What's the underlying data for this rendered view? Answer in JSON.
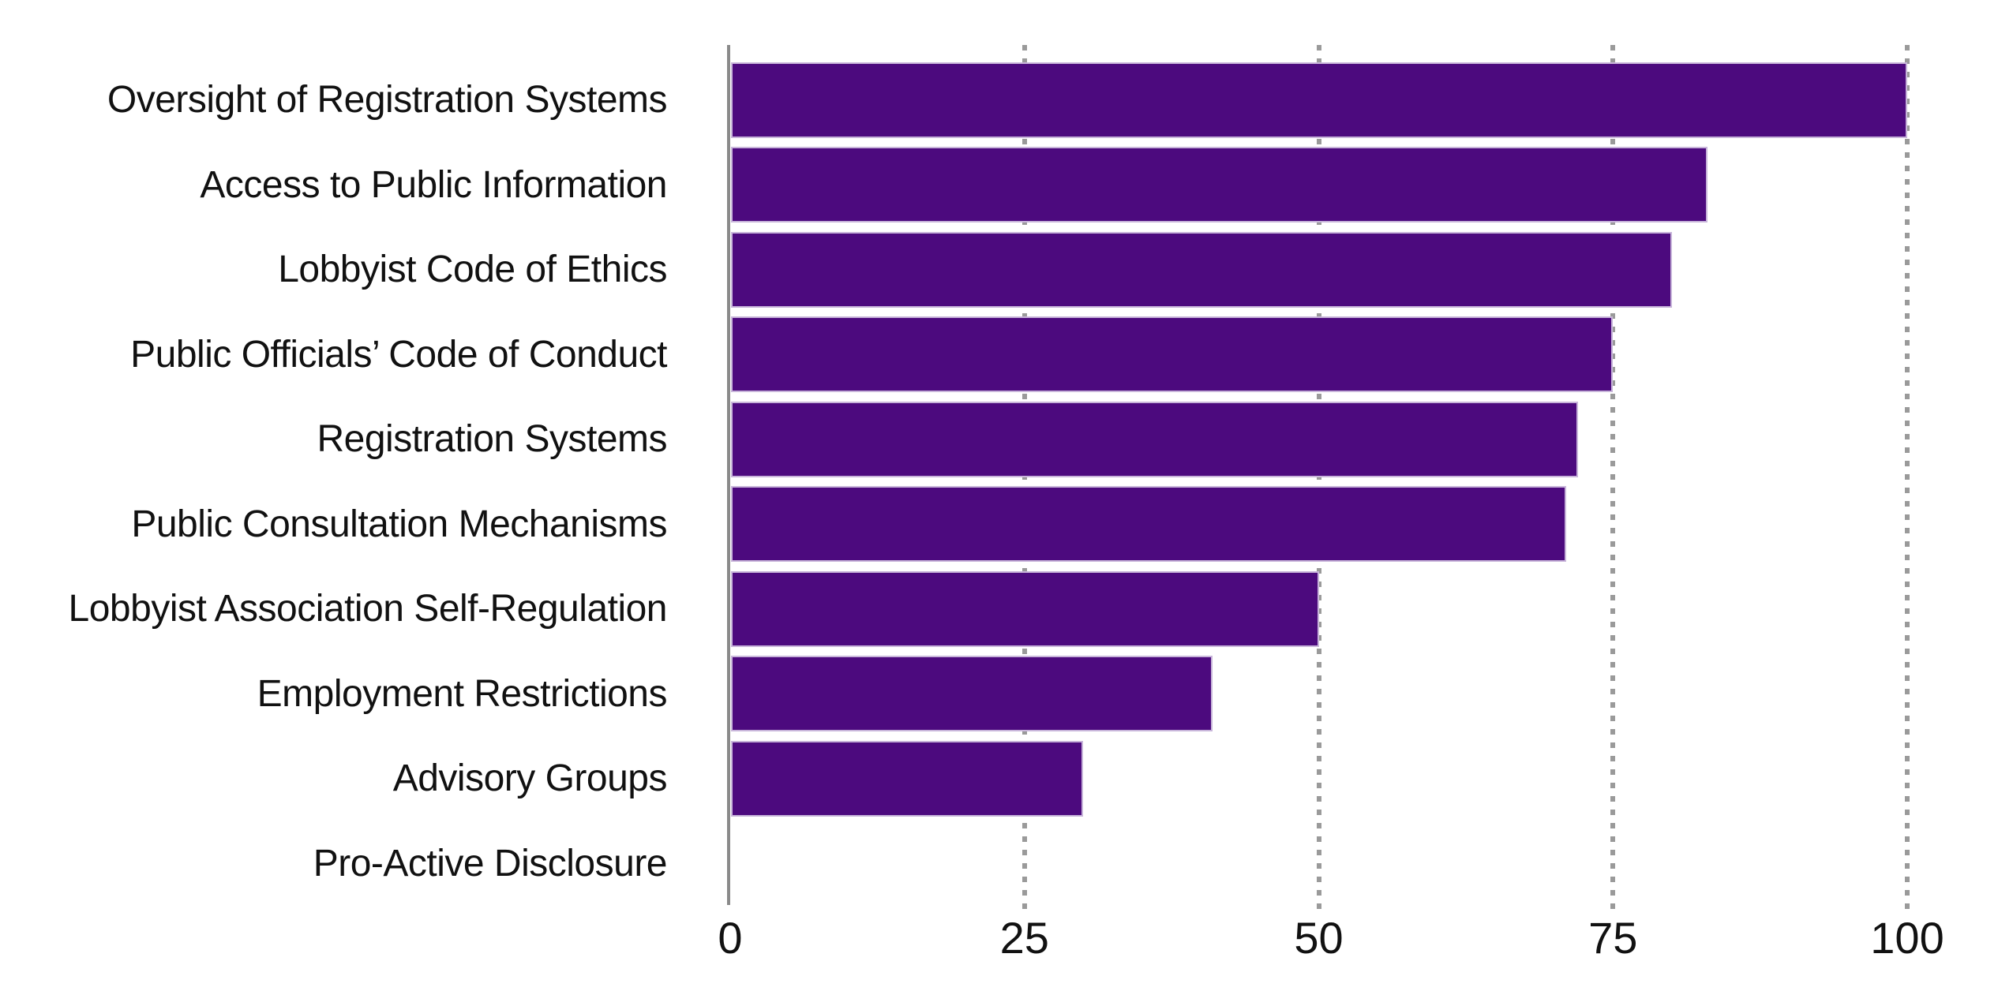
{
  "chart_data": {
    "type": "bar",
    "orientation": "horizontal",
    "title": "",
    "categories": [
      "Oversight of Registration Systems",
      "Access to Public Information",
      "Lobbyist Code of Ethics",
      "Public Officials’ Code of Conduct",
      "Registration Systems",
      "Public Consultation Mechanisms",
      "Lobbyist Association Self-Regulation",
      "Employment Restrictions",
      "Advisory Groups",
      "Pro-Active Disclosure"
    ],
    "values": [
      100,
      83,
      80,
      75,
      72,
      71,
      50,
      41,
      30,
      0
    ],
    "xlabel": "",
    "ylabel": "",
    "xlim": [
      0,
      100
    ],
    "x_ticks": [
      0,
      25,
      50,
      75,
      100
    ],
    "grid": "vertical-dotted",
    "legend": "none",
    "colors": {
      "bar": "#4C0A7E",
      "bar_border": "#C8B5DA",
      "axis_line": "#8A8A8A",
      "gridline": "#9A9A9A",
      "text": "#111111",
      "background": "#FFFFFF"
    }
  }
}
